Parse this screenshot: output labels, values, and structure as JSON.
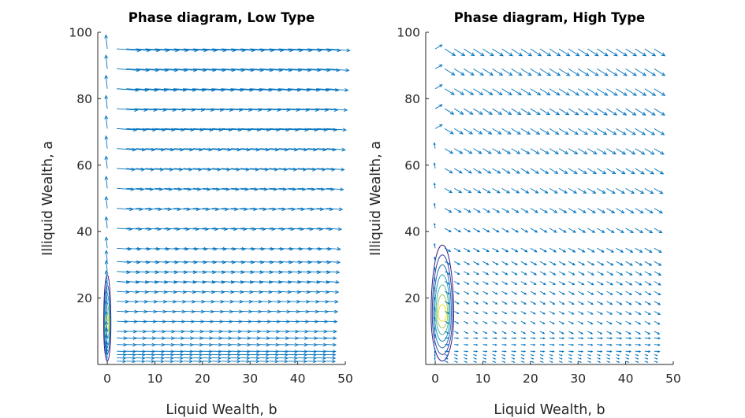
{
  "chart_data": [
    {
      "type": "quiver",
      "title": "Phase diagram, Low Type",
      "xlabel": "Liquid Wealth, b",
      "ylabel": "Illiquid Wealth, a",
      "xlim": [
        -2,
        50
      ],
      "ylim": [
        0,
        100
      ],
      "xticks": [
        0,
        10,
        20,
        30,
        40,
        50
      ],
      "yticks": [
        20,
        40,
        60,
        80,
        100
      ],
      "grid": false,
      "colors": {
        "arrows": "#0072bd",
        "contour_outer": "#3a1b8c",
        "contour_mid": "#1aa6c9",
        "contour_inner": "#e8e020"
      },
      "quiver_rows_a": [
        1,
        2,
        3,
        4,
        6,
        8,
        10,
        13,
        16,
        19,
        22,
        25,
        28,
        31,
        35,
        41,
        47,
        53,
        59,
        65,
        71,
        77,
        83,
        89,
        95
      ],
      "quiver_columns_b": [
        0,
        2,
        4,
        6,
        8,
        10,
        12,
        14,
        16,
        18,
        20,
        22,
        24,
        26,
        28,
        30,
        32,
        34,
        36,
        38,
        40,
        42,
        44,
        46
      ],
      "flow_direction": "arrows point right with slight downward drift; b = 0 column points downward",
      "density_contours": {
        "center": [
          0,
          12
        ],
        "levels": 5,
        "b_extent": [
          -0.8,
          0.8
        ],
        "a_extent": [
          1,
          27
        ]
      }
    },
    {
      "type": "quiver",
      "title": "Phase diagram, High Type",
      "xlabel": "Liquid Wealth, b",
      "ylabel": "Illiquid Wealth, a",
      "xlim": [
        -2,
        50
      ],
      "ylim": [
        0,
        100
      ],
      "xticks": [
        0,
        10,
        20,
        30,
        40,
        50
      ],
      "yticks": [
        20,
        40,
        60,
        80,
        100
      ],
      "grid": false,
      "colors": {
        "arrows": "#0072bd",
        "contour_outer": "#3a1b8c",
        "contour_mid": "#1aa6c9",
        "contour_inner": "#e8e020"
      },
      "quiver_rows_a": [
        1,
        2,
        3,
        4,
        6,
        8,
        10,
        13,
        16,
        19,
        22,
        25,
        28,
        31,
        35,
        41,
        47,
        53,
        59,
        65,
        71,
        77,
        83,
        89,
        95
      ],
      "quiver_columns_b": [
        0,
        2,
        4,
        6,
        8,
        10,
        12,
        14,
        16,
        18,
        20,
        22,
        24,
        26,
        28,
        30,
        32,
        34,
        36,
        38,
        40,
        42,
        44,
        46
      ],
      "flow_direction": "arrows point toward larger b and smaller a; pointing right near a = 0",
      "density_contours": {
        "center": [
          1.5,
          15
        ],
        "levels": 7,
        "b_extent": [
          -0.8,
          4
        ],
        "a_extent": [
          1,
          36
        ]
      }
    }
  ]
}
